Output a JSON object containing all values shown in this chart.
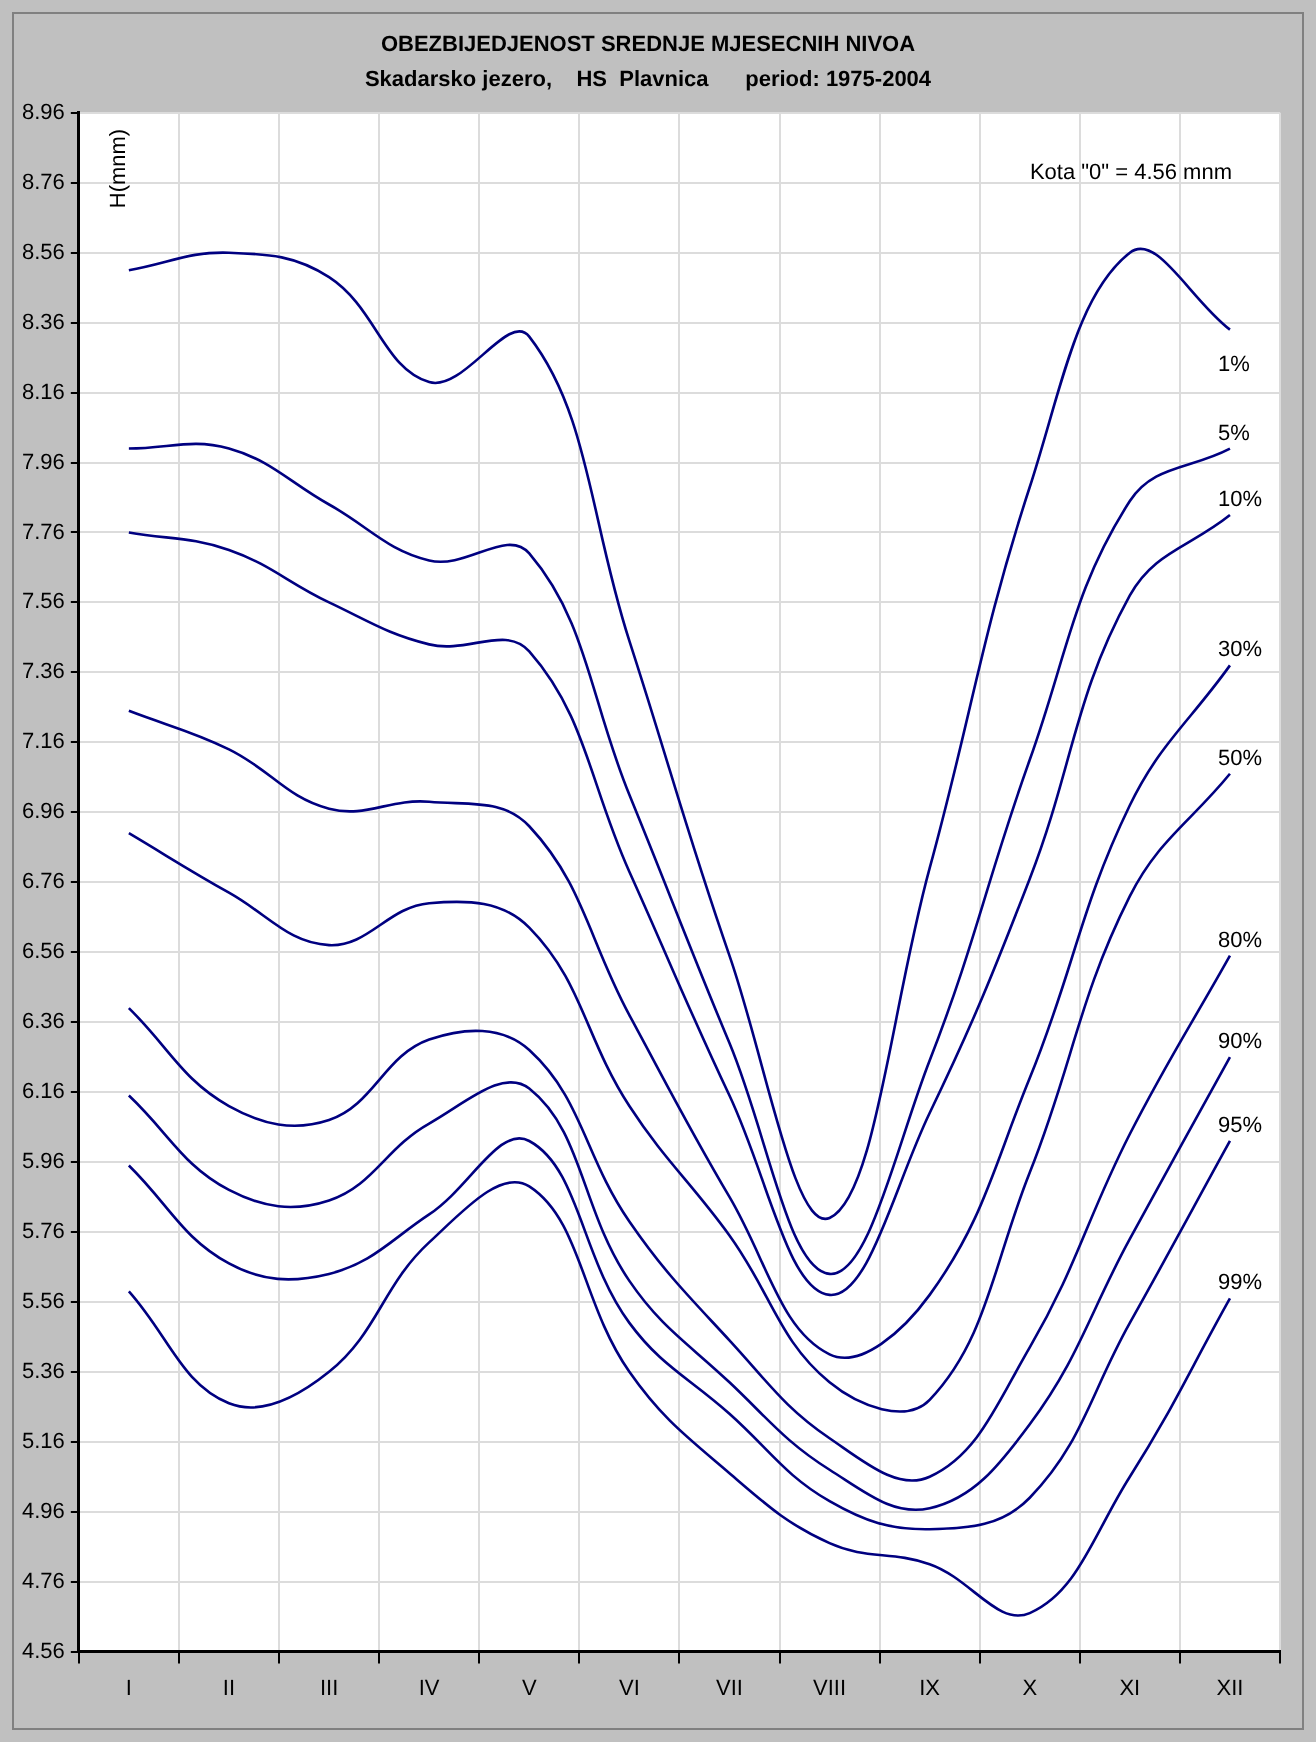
{
  "chart_data": {
    "type": "line",
    "title": "OBEZBIJEDJENOST SREDNJE MJESECNIH NIVOA",
    "subtitle": "Skadarsko jezero,    HS  Plavnica      period: 1975-2004",
    "ylabel": "H(mnm)",
    "annotations": [
      "Kota \"0\" = 4.56 mnm"
    ],
    "categories": [
      "I",
      "II",
      "III",
      "IV",
      "V",
      "VI",
      "VII",
      "VIII",
      "IX",
      "X",
      "XI",
      "XII"
    ],
    "series": [
      {
        "name": "1%",
        "color": "#000080",
        "values": [
          8.51,
          8.56,
          8.49,
          8.19,
          8.32,
          7.45,
          6.55,
          5.8,
          6.8,
          7.89,
          8.56,
          8.34
        ]
      },
      {
        "name": "5%",
        "color": "#000080",
        "values": [
          8.0,
          8.0,
          7.84,
          7.68,
          7.7,
          7.01,
          6.3,
          5.64,
          6.25,
          7.11,
          7.85,
          8.0
        ]
      },
      {
        "name": "10%",
        "color": "#000080",
        "values": [
          7.76,
          7.71,
          7.56,
          7.44,
          7.42,
          6.79,
          6.15,
          5.58,
          6.1,
          6.77,
          7.58,
          7.81
        ]
      },
      {
        "name": "30%",
        "color": "#000080",
        "values": [
          7.25,
          7.14,
          6.97,
          6.99,
          6.92,
          6.38,
          5.86,
          5.41,
          5.58,
          6.2,
          6.98,
          7.38
        ]
      },
      {
        "name": "50%",
        "color": "#000080",
        "values": [
          6.9,
          6.73,
          6.58,
          6.7,
          6.63,
          6.12,
          5.75,
          5.33,
          5.28,
          5.93,
          6.72,
          7.07
        ]
      },
      {
        "name": "80%",
        "color": "#000080",
        "values": [
          6.4,
          6.12,
          6.08,
          6.31,
          6.28,
          5.79,
          5.45,
          5.17,
          5.06,
          5.43,
          6.04,
          6.55
        ]
      },
      {
        "name": "90%",
        "color": "#000080",
        "values": [
          6.15,
          5.88,
          5.85,
          6.07,
          6.17,
          5.62,
          5.33,
          5.08,
          4.97,
          5.21,
          5.74,
          6.26
        ]
      },
      {
        "name": "95%",
        "color": "#000080",
        "values": [
          5.95,
          5.67,
          5.64,
          5.81,
          6.02,
          5.5,
          5.24,
          4.99,
          4.91,
          5.0,
          5.5,
          6.02
        ]
      },
      {
        "name": "99%",
        "color": "#000080",
        "values": [
          5.59,
          5.27,
          5.36,
          5.73,
          5.89,
          5.36,
          5.07,
          4.87,
          4.81,
          4.67,
          5.06,
          5.57
        ]
      }
    ],
    "ylim": [
      4.56,
      8.96
    ],
    "yticks": [
      4.56,
      4.76,
      4.96,
      5.16,
      5.36,
      5.56,
      5.76,
      5.96,
      6.16,
      6.36,
      6.56,
      6.76,
      6.96,
      7.16,
      7.36,
      7.56,
      7.76,
      7.96,
      8.16,
      8.36,
      8.56,
      8.76,
      8.96
    ],
    "grid": true,
    "legend": false,
    "marker": "none",
    "line_style": "solid"
  }
}
